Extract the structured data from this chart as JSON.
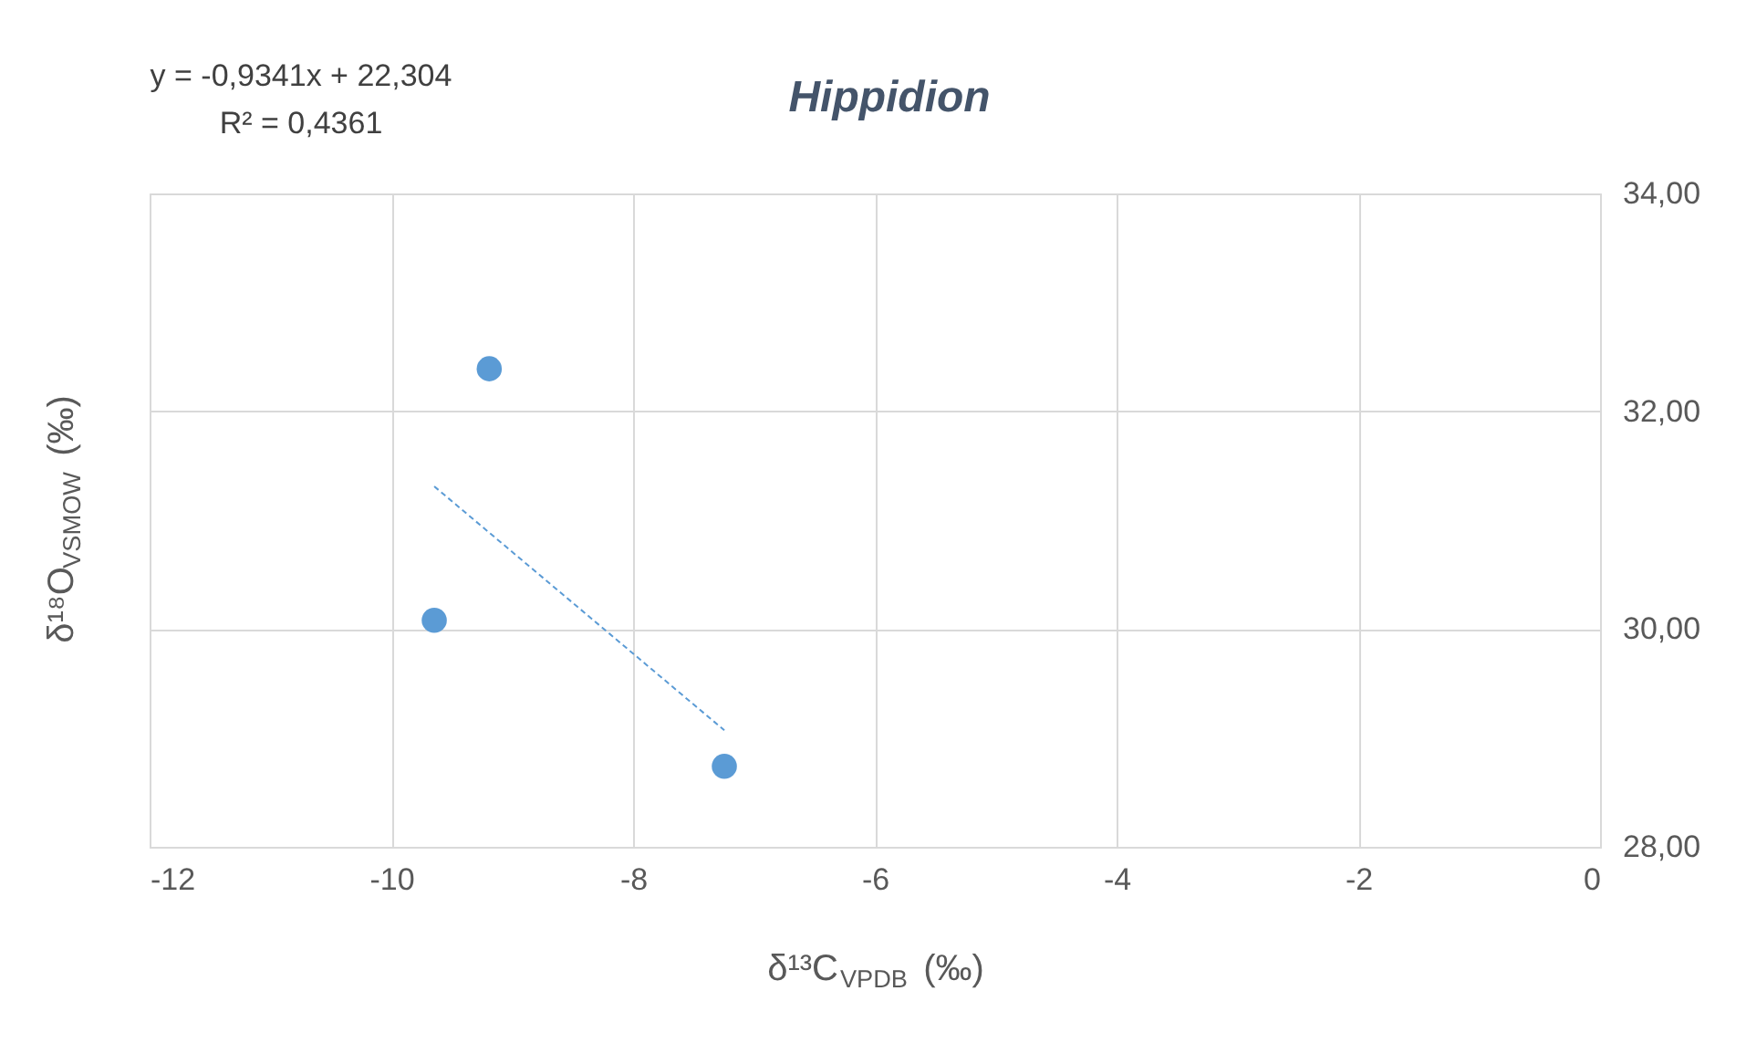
{
  "chart_data": {
    "type": "scatter",
    "title": "Hippidion",
    "xlabel": "δ¹³C$_{VPDB}$ (‰)",
    "ylabel": "δ¹⁸O$_{VSMOW}$ (‰)",
    "annotations": [
      "y = -0,9341x + 22,304",
      "R² = 0,4361"
    ],
    "series": [
      {
        "color": "#5b9bd5",
        "marker": "circle",
        "x": [
          -9.19,
          -9.645,
          -7.245
        ],
        "values": [
          32.39,
          30.08,
          28.74
        ]
      },
      {
        "type": "line",
        "color": "#5b9bd5",
        "marker": "none",
        "line_style": "dashed",
        "x": [
          -9.645,
          -7.245
        ],
        "values": [
          31.31,
          29.07
        ]
      }
    ],
    "xlim": [
      -12,
      0
    ],
    "xticks": [
      -12,
      -10,
      -8,
      -6,
      -4,
      -2,
      0
    ],
    "ylim": [
      28,
      34
    ],
    "yticks": [
      {
        "value": 28,
        "label": "28,00"
      },
      {
        "value": 30,
        "label": "30,00"
      },
      {
        "value": 32,
        "label": "32,00"
      },
      {
        "value": 34,
        "label": "34,00"
      }
    ],
    "grid": true
  }
}
